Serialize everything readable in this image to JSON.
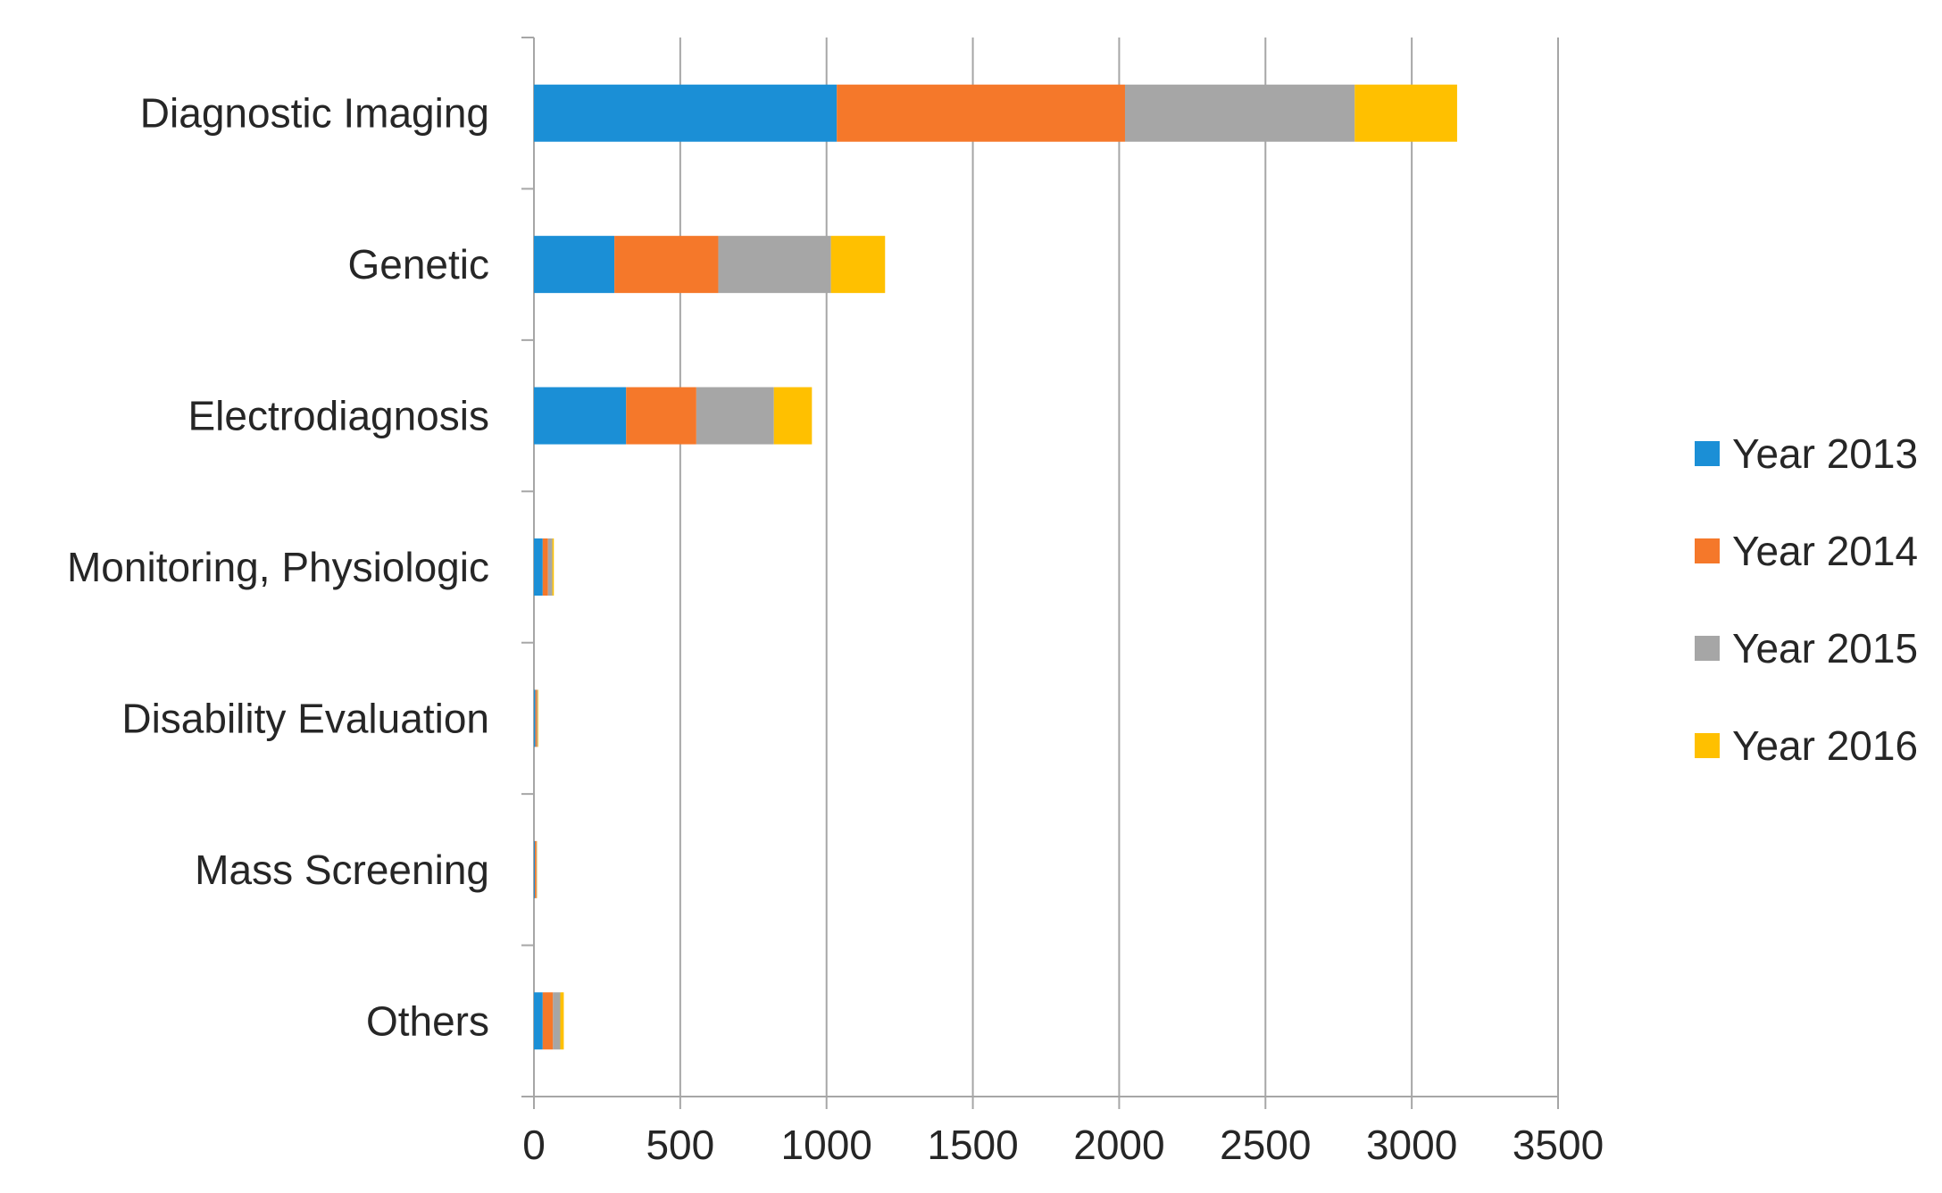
{
  "chart_data": {
    "type": "bar",
    "orientation": "horizontal",
    "stacked": true,
    "title": "",
    "xlabel": "",
    "ylabel": "",
    "xlim": [
      0,
      3500
    ],
    "xticks": [
      0,
      500,
      1000,
      1500,
      2000,
      2500,
      3000,
      3500
    ],
    "grid": true,
    "legend_position": "right",
    "categories": [
      "Diagnostic Imaging",
      "Genetic",
      "Electrodiagnosis",
      "Monitoring, Physiologic",
      "Disability Evaluation",
      "Mass Screening",
      "Others"
    ],
    "series": [
      {
        "name": "Year 2013",
        "color": "#1b8fd6",
        "values": [
          1035,
          275,
          315,
          30,
          5,
          3,
          30
        ]
      },
      {
        "name": "Year 2014",
        "color": "#f5782a",
        "values": [
          985,
          355,
          240,
          18,
          5,
          5,
          35
        ]
      },
      {
        "name": "Year 2015",
        "color": "#a6a6a6",
        "values": [
          785,
          385,
          265,
          15,
          3,
          2,
          25
        ]
      },
      {
        "name": "Year 2016",
        "color": "#ffc000",
        "values": [
          350,
          185,
          130,
          5,
          2,
          1,
          12
        ]
      }
    ]
  }
}
